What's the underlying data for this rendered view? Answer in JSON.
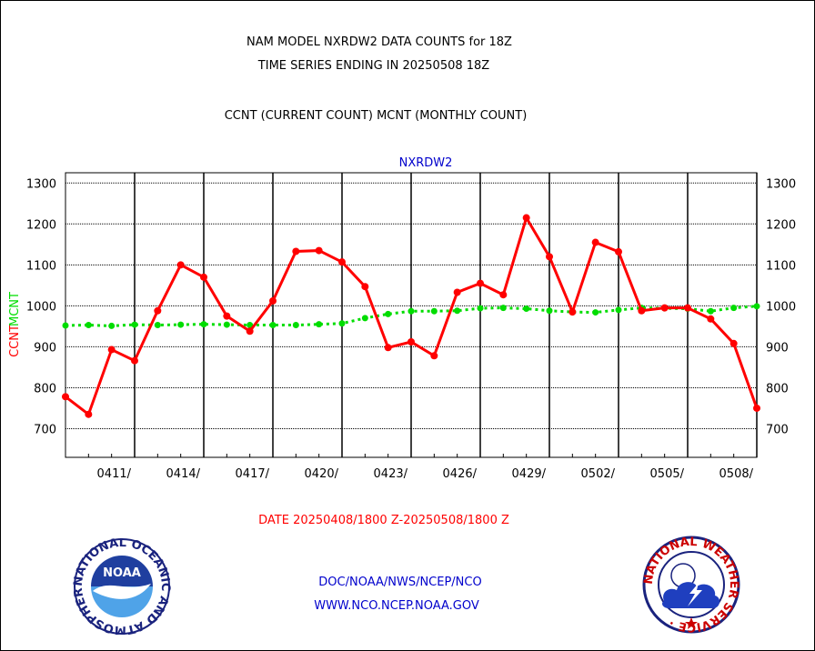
{
  "header": {
    "title_line1": "NAM MODEL NXRDW2 DATA COUNTS for 18Z",
    "title_line2": "TIME SERIES ENDING IN 20250508 18Z",
    "subtitle": "CCNT (CURRENT COUNT) MCNT (MONTHLY COUNT)"
  },
  "footer": {
    "date_range": "DATE 20250408/1800 Z-20250508/1800 Z",
    "org": "DOC/NOAA/NWS/NCEP/NCO",
    "url": "WWW.NCO.NCEP.NOAA.GOV"
  },
  "logos": {
    "left": "NOAA",
    "left_ring_text": "NATIONAL OCEANIC AND ATMOSPHERIC ADMINISTRATION · U.S. DEPARTMENT OF COMMERCE ·",
    "right_ring_text": "NATIONAL WEATHER SERVICE ·"
  },
  "colors": {
    "ccnt": "#ff0000",
    "mcnt": "#00dd00",
    "plot_name": "#0000cc",
    "date_range": "#ff0000",
    "footer_text": "#0000cc"
  },
  "chart_data": {
    "type": "line",
    "plot_name": "NXRDW2",
    "ylabel_ccnt": "CCNT",
    "ylabel_mcnt": "MCNT",
    "ylim": [
      630,
      1325
    ],
    "yticks": [
      700,
      800,
      900,
      1000,
      1100,
      1200,
      1300
    ],
    "ytick_labels": [
      "700",
      "800",
      "900",
      "1000",
      "1100",
      "1200",
      "1300"
    ],
    "x_start": "20250408",
    "x_end": "20250508",
    "xticks": [
      "20250411",
      "20250414",
      "20250417",
      "20250420",
      "20250423",
      "20250426",
      "20250429",
      "20250502",
      "20250505",
      "20250508"
    ],
    "xtick_labels": [
      "0411/",
      "0414/",
      "0417/",
      "0420/",
      "0423/",
      "0426/",
      "0429/",
      "0502/",
      "0505/",
      "0508/"
    ],
    "grid": true,
    "series": [
      {
        "name": "CCNT (CURRENT COUNT)",
        "x": [
          "20250408",
          "20250409",
          "20250410",
          "20250411",
          "20250412",
          "20250413",
          "20250414",
          "20250415",
          "20250416",
          "20250417",
          "20250418",
          "20250419",
          "20250420",
          "20250421",
          "20250422",
          "20250423",
          "20250424",
          "20250425",
          "20250426",
          "20250427",
          "20250428",
          "20250429",
          "20250430",
          "20250501",
          "20250502",
          "20250503",
          "20250504",
          "20250505",
          "20250506",
          "20250507",
          "20250508"
        ],
        "values": [
          778,
          735,
          893,
          866,
          988,
          1100,
          1070,
          975,
          938,
          1012,
          1133,
          1135,
          1107,
          1047,
          898,
          912,
          878,
          1033,
          1055,
          1027,
          1215,
          1120,
          985,
          1155,
          1132,
          988,
          995,
          995,
          968,
          908,
          750
        ]
      },
      {
        "name": "MCNT (MONTHLY COUNT)",
        "x": [
          "20250408",
          "20250409",
          "20250410",
          "20250411",
          "20250412",
          "20250413",
          "20250414",
          "20250415",
          "20250416",
          "20250417",
          "20250418",
          "20250419",
          "20250420",
          "20250421",
          "20250422",
          "20250423",
          "20250424",
          "20250425",
          "20250426",
          "20250427",
          "20250428",
          "20250429",
          "20250430",
          "20250501",
          "20250502",
          "20250503",
          "20250504",
          "20250505",
          "20250506",
          "20250507",
          "20250508"
        ],
        "values": [
          952,
          953,
          951,
          954,
          953,
          954,
          955,
          954,
          953,
          953,
          953,
          955,
          957,
          970,
          980,
          987,
          987,
          988,
          994,
          995,
          993,
          988,
          985,
          984,
          990,
          995,
          994,
          993,
          987,
          995,
          999
        ]
      }
    ]
  }
}
